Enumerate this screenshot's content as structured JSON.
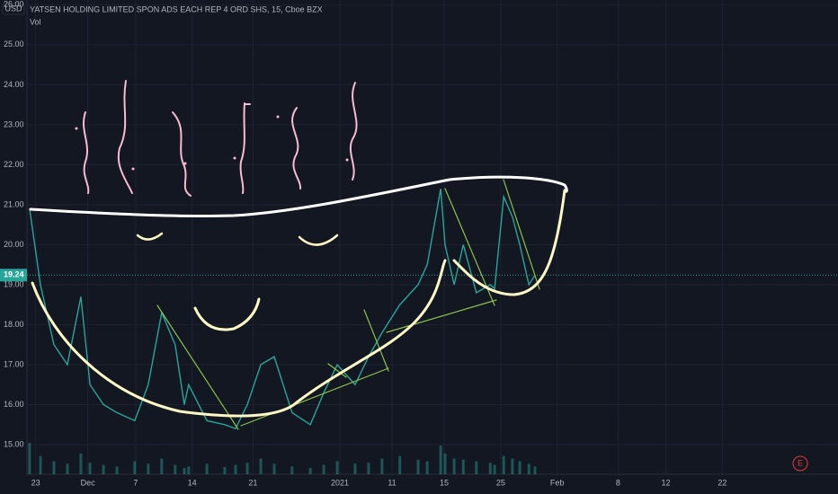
{
  "chart_data": {
    "type": "line",
    "title": "YATSEN HOLDING LIMITED SPON ADS EACH REP 4 ORD SHS, 15, Cboe BZX",
    "subtitle": "Vol",
    "currency": "USD",
    "last_price": 19.24,
    "earnings_marker": "E",
    "x": [
      0.6,
      3.1,
      6.2,
      9.3,
      12.4,
      14.5,
      17.6,
      20.7,
      24.8,
      27.9,
      31,
      34.1,
      36.2,
      37.2,
      41.4,
      45.5,
      48,
      50.7,
      53.8,
      56.9,
      61,
      65.2,
      68.3,
      71.4,
      75.5,
      78.6,
      81.7,
      85.8,
      90,
      92.1,
      95.2,
      96.2,
      98.3,
      100.4,
      103.4,
      106.6,
      107.6,
      109.7,
      111.7,
      113.4,
      115.5,
      116.9
    ],
    "series": [
      {
        "name": "Price",
        "color": "#26a69a",
        "values": [
          20.9,
          19,
          17.5,
          17,
          18.7,
          16.5,
          16,
          15.8,
          15.6,
          16.5,
          18.3,
          17.5,
          16,
          16.5,
          15.6,
          15.5,
          15.4,
          16,
          17,
          17.2,
          15.8,
          15.5,
          16.3,
          17,
          16.5,
          17.2,
          17.8,
          18.5,
          19,
          19.5,
          21.4,
          20,
          19,
          20,
          18.8,
          19,
          18.9,
          21.2,
          20.7,
          20,
          19,
          19.24
        ]
      },
      {
        "name": "Vol",
        "color": "#26a69a",
        "axis": "y2",
        "values": [
          60,
          35,
          25,
          20,
          40,
          22,
          18,
          15,
          25,
          20,
          30,
          18,
          12,
          15,
          20,
          14,
          18,
          22,
          30,
          20,
          15,
          12,
          18,
          25,
          20,
          22,
          30,
          35,
          28,
          25,
          55,
          40,
          30,
          28,
          25,
          22,
          18,
          35,
          30,
          25,
          20,
          15
        ]
      }
    ],
    "xlim": [
      0,
      180
    ],
    "xticks": [
      {
        "value": 2,
        "label": "23"
      },
      {
        "value": 14,
        "label": "Dec"
      },
      {
        "value": 25,
        "label": "7"
      },
      {
        "value": 38,
        "label": "14"
      },
      {
        "value": 52,
        "label": "21"
      },
      {
        "value": 72,
        "label": "2021"
      },
      {
        "value": 84,
        "label": "11"
      },
      {
        "value": 96,
        "label": "15"
      },
      {
        "value": 109,
        "label": "25"
      },
      {
        "value": 122,
        "label": "Feb"
      },
      {
        "value": 136,
        "label": "8"
      },
      {
        "value": 147,
        "label": "12"
      },
      {
        "value": 160,
        "label": "22"
      }
    ],
    "ylim": [
      14.26,
      26.12
    ],
    "yticks": [
      {
        "value": 15,
        "label": "15.00"
      },
      {
        "value": 16,
        "label": "16.00"
      },
      {
        "value": 17,
        "label": "17.00"
      },
      {
        "value": 18,
        "label": "18.00"
      },
      {
        "value": 19,
        "label": "19.00"
      },
      {
        "value": 20,
        "label": "20.00"
      },
      {
        "value": 21,
        "label": "21.00"
      },
      {
        "value": 22,
        "label": "22.00"
      },
      {
        "value": 23,
        "label": "23.00"
      },
      {
        "value": 24,
        "label": "24.00"
      },
      {
        "value": 25,
        "label": "25.00"
      },
      {
        "value": 26,
        "label": "26.00"
      }
    ],
    "y2lim": [
      0,
      100
    ],
    "grid": true
  }
}
